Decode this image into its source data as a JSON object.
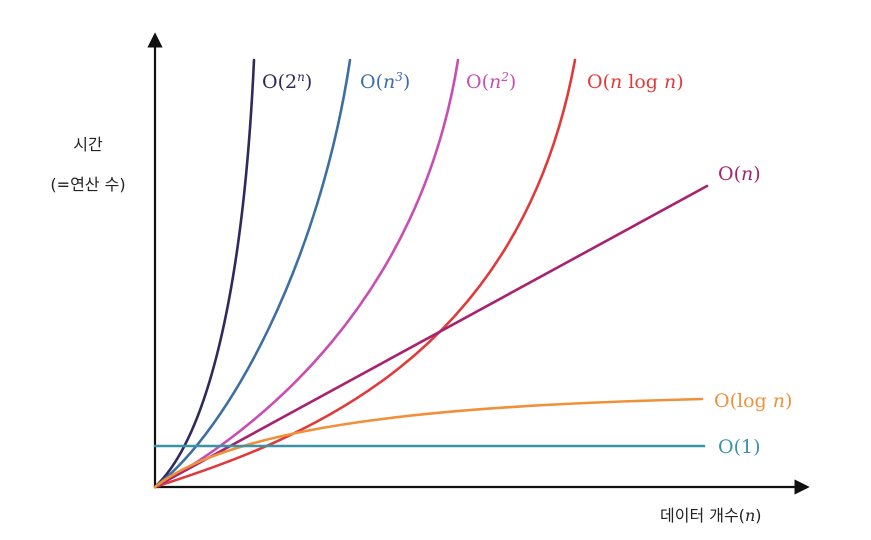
{
  "chart_data": {
    "type": "line",
    "title": "",
    "ylabel": [
      "시간",
      "(=연산 수)"
    ],
    "xlabel": {
      "text": "데이터 개수(",
      "var": "n",
      "close": ")"
    },
    "grid": false,
    "legend": "inline labels at curve ends",
    "series": [
      {
        "name": "O(2^n)",
        "color": "#2f2a5c",
        "label": [
          {
            "t": "O(2"
          },
          {
            "t": "n",
            "sup": true
          },
          {
            "t": ")"
          }
        ]
      },
      {
        "name": "O(n^3)",
        "color": "#3d6fa3",
        "label": [
          {
            "t": "O("
          },
          {
            "t": "n",
            "it": true
          },
          {
            "t": "3",
            "sup": true
          },
          {
            "t": ")"
          }
        ]
      },
      {
        "name": "O(n^2)",
        "color": "#c94eb3",
        "label": [
          {
            "t": "O("
          },
          {
            "t": "n",
            "it": true
          },
          {
            "t": "2",
            "sup": true
          },
          {
            "t": ")"
          }
        ]
      },
      {
        "name": "O(n log n)",
        "color": "#e03a3a",
        "label": [
          {
            "t": "O("
          },
          {
            "t": "n",
            "it": true
          },
          {
            "t": " log "
          },
          {
            "t": "n",
            "it": true
          },
          {
            "t": ")"
          }
        ]
      },
      {
        "name": "O(n)",
        "color": "#a8236f",
        "label": [
          {
            "t": "O("
          },
          {
            "t": "n",
            "it": true
          },
          {
            "t": ")"
          }
        ]
      },
      {
        "name": "O(log n)",
        "color": "#f0913a",
        "label": [
          {
            "t": "O(log "
          },
          {
            "t": "n",
            "it": true
          },
          {
            "t": ")"
          }
        ]
      },
      {
        "name": "O(1)",
        "color": "#3a94a6",
        "label": [
          {
            "t": "O(1)"
          }
        ]
      }
    ]
  }
}
